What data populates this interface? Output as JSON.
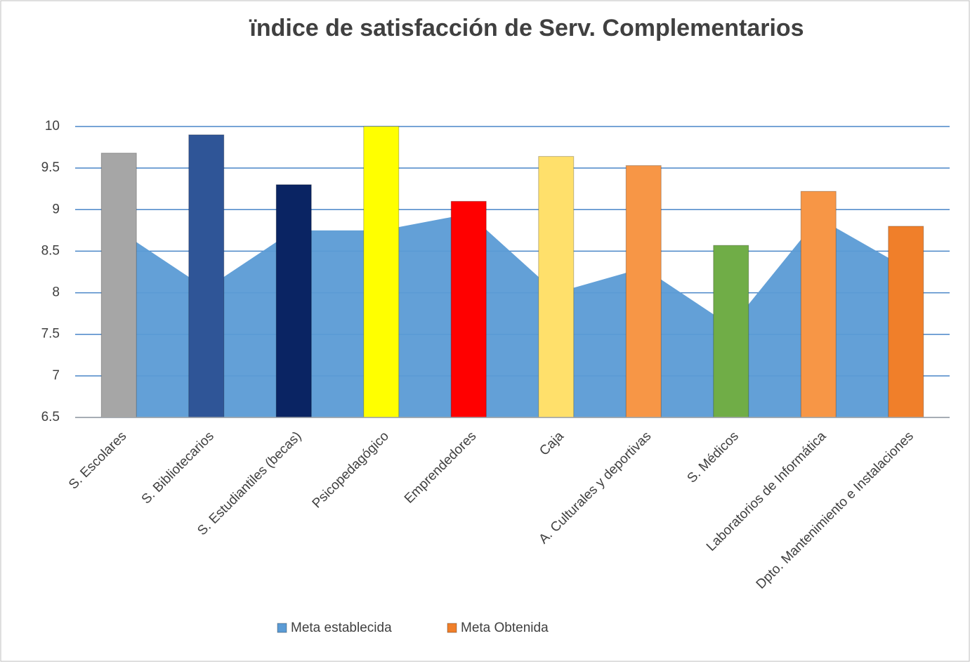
{
  "chart_data": {
    "type": "bar",
    "title": "ïndice de satisfacción de Serv. Complementarios",
    "categories": [
      "S. Escolares",
      "S. Bibliotecarios",
      "S. Estudiantiles (becas)",
      "Psicopedagógico",
      "Emprendedores",
      "Caja",
      "A. Culturales y deportivas",
      "S. Médicos",
      "Laboratorios de Informática",
      "Dpto. Mantenimiento e Instalaciones"
    ],
    "series": [
      {
        "name": "Meta establecida",
        "type": "area",
        "color": "#5b9bd5",
        "values": [
          8.75,
          8.05,
          8.75,
          8.75,
          8.95,
          8.0,
          8.3,
          7.6,
          8.9,
          8.3
        ]
      },
      {
        "name": "Meta Obtenida",
        "type": "bar",
        "color": "#f07f2a",
        "colors": [
          "#a6a6a6",
          "#2f5597",
          "#0a2463",
          "#ffff00",
          "#ff0000",
          "#ffe06b",
          "#f79646",
          "#70ad47",
          "#f79646",
          "#f07f2a"
        ],
        "values": [
          9.68,
          9.9,
          9.3,
          10,
          9.1,
          9.64,
          9.53,
          8.57,
          9.22,
          8.8
        ]
      }
    ],
    "ylim": [
      6.5,
      10
    ],
    "yticks": [
      6.5,
      7,
      7.5,
      8,
      8.5,
      9,
      9.5,
      10
    ],
    "grid": true,
    "legend": "bottom"
  }
}
